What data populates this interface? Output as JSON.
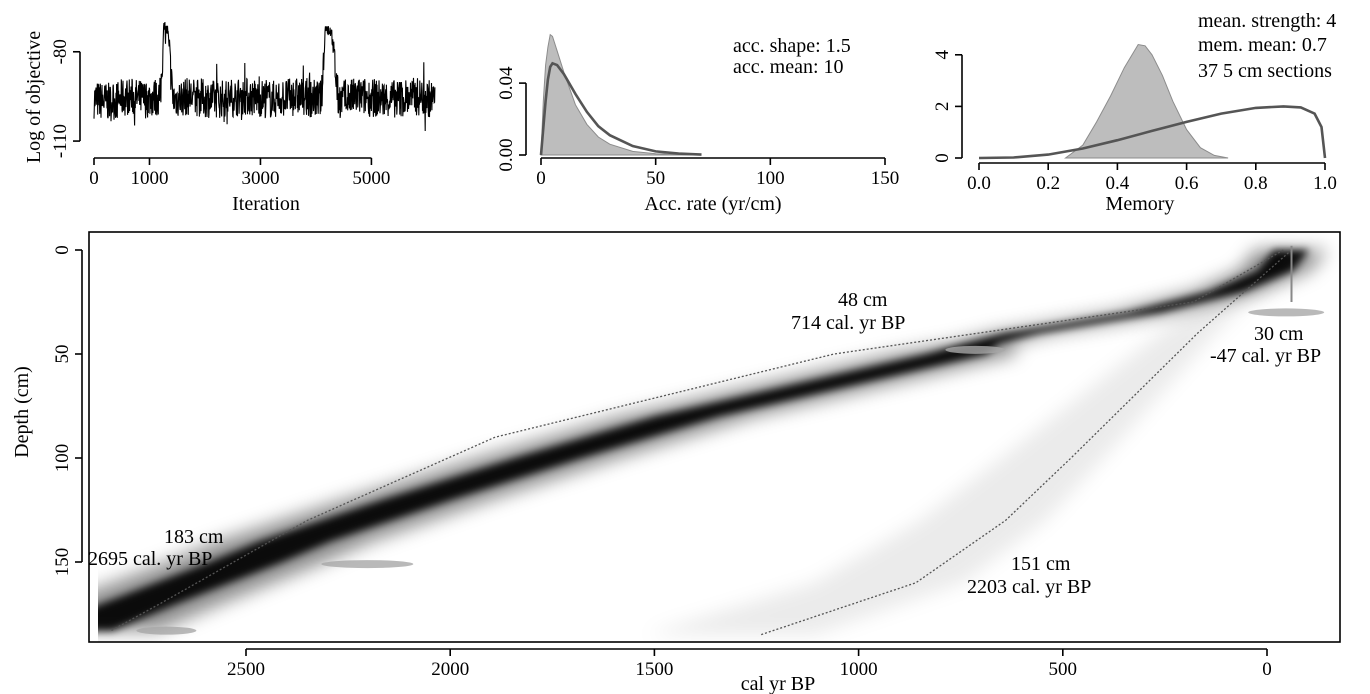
{
  "colors": {
    "ink": "#000000",
    "density": "#000000",
    "prior": "#555555",
    "posterior_fill": "#bdbdbd",
    "posterior_edge": "#8c8c8c",
    "range": "#555555",
    "date_blob": "#a8a8a8"
  },
  "chart_data": [
    {
      "id": "iterations",
      "type": "line",
      "xlabel": "Iteration",
      "ylabel": "Log of objective",
      "xlim": [
        0,
        6200
      ],
      "ylim": [
        -113,
        -70
      ],
      "xticks": [
        0,
        1000,
        3000,
        5000
      ],
      "yticks": [
        -80,
        -110
      ],
      "x": [
        0,
        300,
        600,
        900,
        1200,
        1260,
        1330,
        1420,
        1700,
        2200,
        2700,
        3200,
        3700,
        4100,
        4170,
        4280,
        4400,
        4800,
        5300,
        5800,
        6150
      ],
      "y": [
        -96,
        -97,
        -95,
        -96,
        -95,
        -72,
        -73,
        -96,
        -95,
        -96,
        -95,
        -96,
        -95,
        -96,
        -72,
        -73,
        -96,
        -95,
        -96,
        -95,
        -96
      ]
    },
    {
      "id": "acc-rate",
      "type": "area",
      "xlabel": "Acc. rate (yr/cm)",
      "ylabel": "",
      "xlim": [
        0,
        150
      ],
      "ylim": [
        0,
        0.074
      ],
      "xticks": [
        0,
        50,
        100,
        150
      ],
      "yticks": [
        0.0,
        0.04
      ],
      "ytick_labels": [
        "0.00",
        "0.04"
      ],
      "annotations": [
        "acc. shape: 1.5",
        "acc. mean: 10"
      ],
      "series": [
        {
          "role": "posterior",
          "x": [
            0,
            1,
            2,
            3,
            4,
            5,
            7,
            10,
            15,
            20,
            25,
            30,
            40,
            50,
            60,
            70
          ],
          "values": [
            0,
            0.03,
            0.05,
            0.06,
            0.067,
            0.066,
            0.058,
            0.046,
            0.028,
            0.017,
            0.01,
            0.006,
            0.002,
            0.0007,
            0.0002,
            0
          ]
        },
        {
          "role": "prior",
          "x": [
            0,
            1,
            2,
            3,
            4,
            5,
            7,
            10,
            15,
            20,
            25,
            30,
            40,
            50,
            60,
            70
          ],
          "values": [
            0,
            0.015,
            0.03,
            0.042,
            0.049,
            0.051,
            0.05,
            0.045,
            0.034,
            0.024,
            0.016,
            0.011,
            0.005,
            0.002,
            0.0008,
            0.0002
          ]
        }
      ]
    },
    {
      "id": "memory",
      "type": "area",
      "xlabel": "Memory",
      "ylabel": "",
      "xlim": [
        0,
        1
      ],
      "ylim": [
        0,
        5
      ],
      "xticks": [
        0.0,
        0.2,
        0.4,
        0.6,
        0.8,
        1.0
      ],
      "xtick_labels": [
        "0.0",
        "0.2",
        "0.4",
        "0.6",
        "0.8",
        "1.0"
      ],
      "yticks": [
        0,
        2,
        4
      ],
      "annotations": [
        "mean. strength: 4",
        "mem. mean: 0.7",
        "37 5 cm sections"
      ],
      "series": [
        {
          "role": "posterior",
          "x": [
            0.25,
            0.3,
            0.34,
            0.38,
            0.42,
            0.46,
            0.48,
            0.5,
            0.53,
            0.56,
            0.6,
            0.64,
            0.68,
            0.72
          ],
          "values": [
            0,
            0.5,
            1.4,
            2.4,
            3.5,
            4.4,
            4.35,
            4.0,
            3.2,
            2.2,
            1.1,
            0.4,
            0.1,
            0
          ]
        },
        {
          "role": "prior",
          "x": [
            0.0,
            0.1,
            0.2,
            0.3,
            0.4,
            0.5,
            0.6,
            0.7,
            0.8,
            0.88,
            0.93,
            0.97,
            0.99,
            1.0
          ],
          "values": [
            0,
            0.02,
            0.13,
            0.37,
            0.69,
            1.05,
            1.4,
            1.72,
            1.94,
            2.0,
            1.96,
            1.72,
            1.2,
            0
          ]
        }
      ]
    },
    {
      "id": "age-depth",
      "type": "heatmap",
      "xlabel": "cal yr BP",
      "ylabel": "Depth (cm)",
      "xlim": [
        2960,
        -140
      ],
      "ylim": [
        188,
        -8
      ],
      "xticks": [
        2500,
        2000,
        1500,
        1000,
        500,
        0
      ],
      "yticks": [
        0,
        50,
        100,
        150
      ],
      "model_mean": {
        "depth": [
          0,
          10,
          20,
          30,
          40,
          45,
          50,
          60,
          80,
          100,
          120,
          140,
          150,
          160,
          170,
          183
        ],
        "age": [
          -60,
          -20,
          100,
          300,
          600,
          700,
          760,
          980,
          1420,
          1760,
          2080,
          2380,
          2500,
          2630,
          2760,
          2920
        ]
      },
      "range_upper": {
        "depth": [
          0,
          25,
          50,
          90,
          130,
          170,
          183
        ],
        "age": [
          -40,
          180,
          1060,
          1890,
          2350,
          2710,
          2830
        ]
      },
      "range_lower": {
        "depth": [
          0,
          40,
          100,
          130,
          160,
          185
        ],
        "age": [
          -60,
          170,
          480,
          640,
          860,
          1240
        ]
      },
      "dates": [
        {
          "depth": 30,
          "age": -47,
          "depth_label": "30 cm",
          "age_label": "-47 cal. yr BP"
        },
        {
          "depth": 48,
          "age": 714,
          "depth_label": "48 cm",
          "age_label": "714 cal. yr BP"
        },
        {
          "depth": 151,
          "age": 2203,
          "depth_label": "151 cm",
          "age_label": "2203 cal. yr BP"
        },
        {
          "depth": 183,
          "age": 2695,
          "depth_label": "183 cm",
          "age_label": "2695 cal. yr BP"
        }
      ]
    }
  ]
}
